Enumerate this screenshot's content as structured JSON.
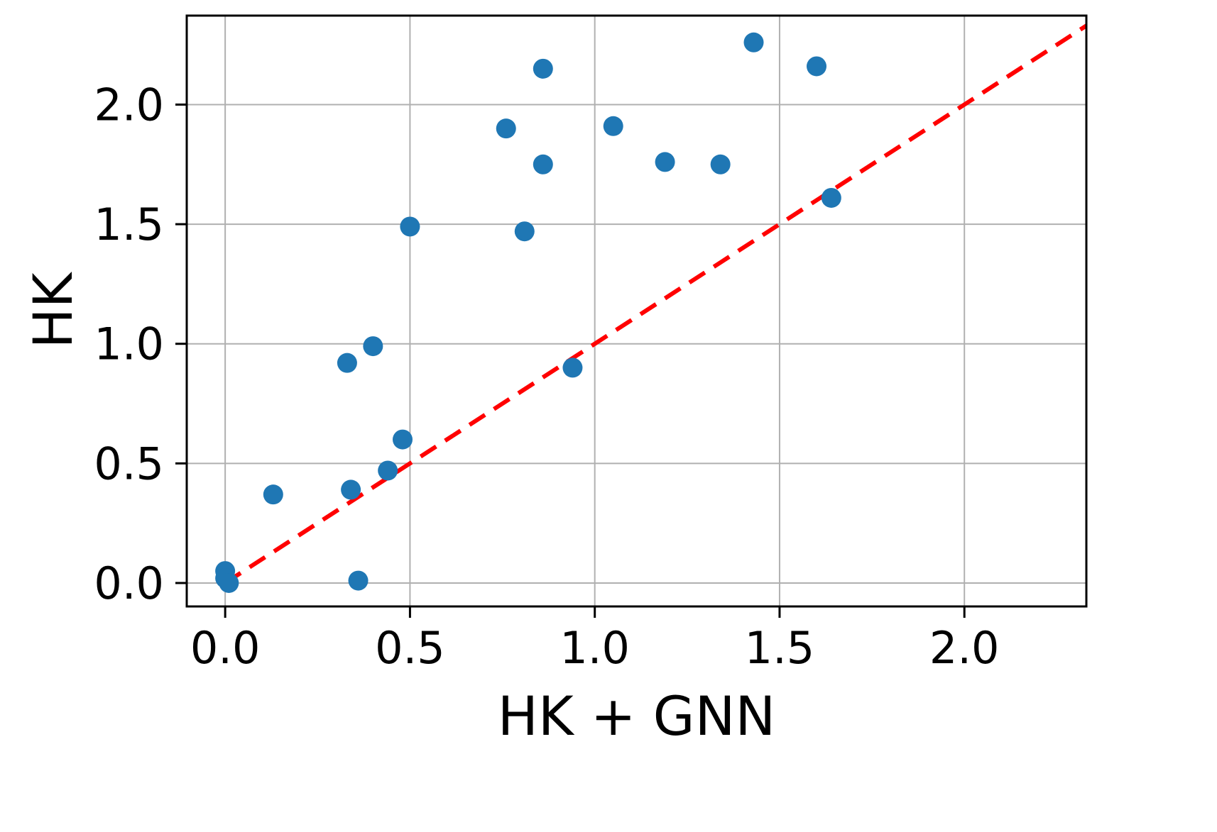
{
  "chart_data": {
    "type": "scatter",
    "title": "",
    "xlabel": "HK + GNN",
    "ylabel": "HK",
    "xlim": [
      -0.104,
      2.33
    ],
    "ylim": [
      -0.098,
      2.372
    ],
    "xticks": [
      0.0,
      0.5,
      1.0,
      1.5,
      2.0
    ],
    "yticks": [
      0.0,
      0.5,
      1.0,
      1.5,
      2.0
    ],
    "tick_decimals": 1,
    "grid": true,
    "grid_color": "#b0b0b0",
    "legend": "none",
    "point_color": "#1f77b4",
    "point_radius_px": 14,
    "reference_line": {
      "style": "dashed",
      "color": "#ff0000",
      "from": [
        0.0,
        0.0
      ],
      "to": [
        2.36,
        2.36
      ],
      "meaning": "y = x identity line"
    },
    "points": [
      [
        0.0,
        0.05
      ],
      [
        0.0,
        0.02
      ],
      [
        0.01,
        0.0
      ],
      [
        0.13,
        0.37
      ],
      [
        0.33,
        0.92
      ],
      [
        0.34,
        0.39
      ],
      [
        0.36,
        0.01
      ],
      [
        0.4,
        0.99
      ],
      [
        0.44,
        0.47
      ],
      [
        0.48,
        0.6
      ],
      [
        0.5,
        1.49
      ],
      [
        0.76,
        1.9
      ],
      [
        0.81,
        1.47
      ],
      [
        0.86,
        2.15
      ],
      [
        0.86,
        1.75
      ],
      [
        0.94,
        0.9
      ],
      [
        1.05,
        1.91
      ],
      [
        1.19,
        1.76
      ],
      [
        1.34,
        1.75
      ],
      [
        1.43,
        2.26
      ],
      [
        1.6,
        2.16
      ],
      [
        1.64,
        1.61
      ]
    ]
  },
  "labels": {
    "xlabel": "HK + GNN",
    "ylabel": "HK"
  }
}
